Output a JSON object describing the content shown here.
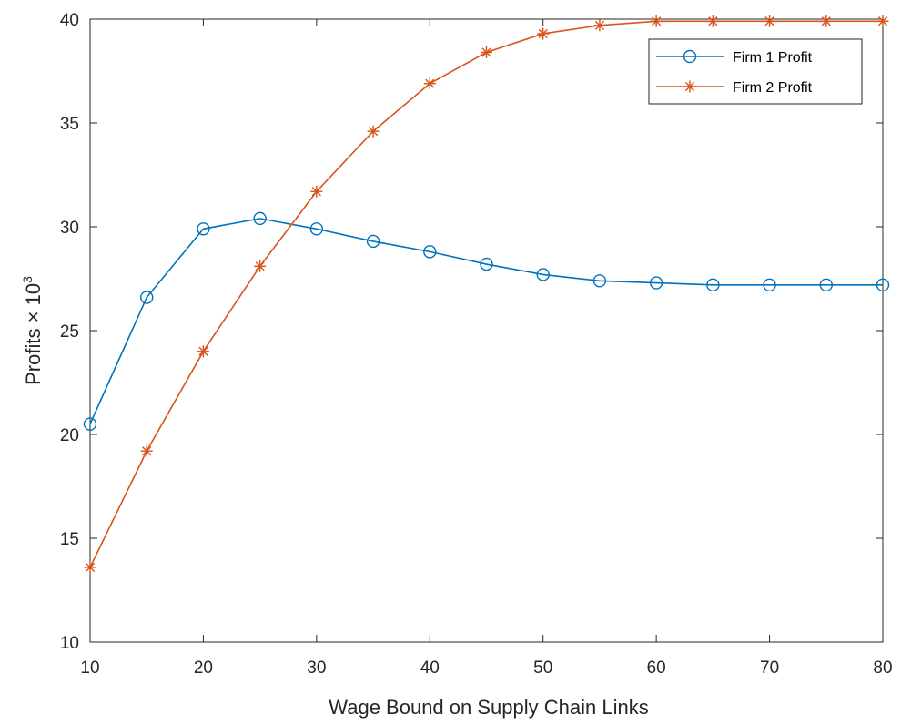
{
  "chart_data": {
    "type": "line",
    "title": "",
    "xlabel": "Wage Bound on Supply Chain Links",
    "ylabel": {
      "base": "Profits",
      "times": "×",
      "ten": "10",
      "exponent": "3"
    },
    "xlim": [
      10,
      80
    ],
    "ylim": [
      10,
      40
    ],
    "xticks": [
      10,
      20,
      30,
      40,
      50,
      60,
      70,
      80
    ],
    "yticks": [
      10,
      15,
      20,
      25,
      30,
      35,
      40
    ],
    "grid": false,
    "legend_position": "top-right",
    "x": [
      10,
      15,
      20,
      25,
      30,
      35,
      40,
      45,
      50,
      55,
      60,
      65,
      70,
      75,
      80
    ],
    "series": [
      {
        "name": "Firm 1 Profit",
        "color": "#0072BD",
        "marker": "circle",
        "values": [
          20.5,
          26.6,
          29.9,
          30.4,
          29.9,
          29.3,
          28.8,
          28.2,
          27.7,
          27.4,
          27.3,
          27.2,
          27.2,
          27.2,
          27.2
        ]
      },
      {
        "name": "Firm 2 Profit",
        "color": "#D95319",
        "marker": "asterisk",
        "values": [
          13.6,
          19.2,
          24.0,
          28.1,
          31.7,
          34.6,
          36.9,
          38.4,
          39.3,
          39.7,
          39.9,
          39.9,
          39.9,
          39.9,
          39.9
        ]
      }
    ]
  }
}
